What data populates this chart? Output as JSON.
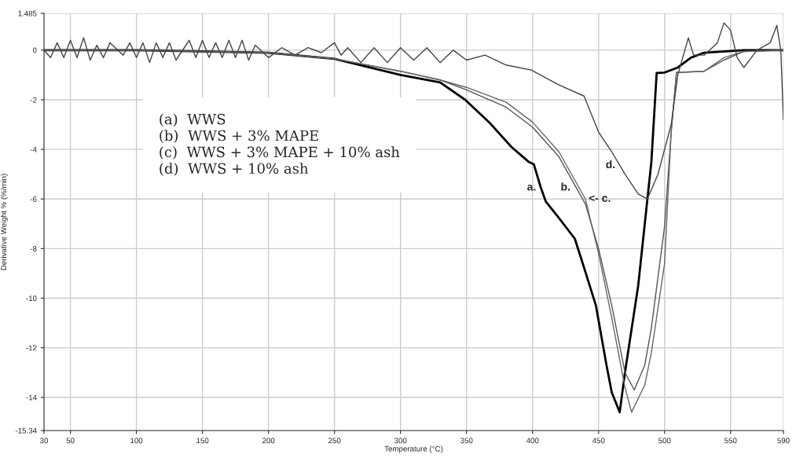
{
  "chart_data": {
    "type": "line",
    "xlabel": "Temperature (°C)",
    "ylabel": "Derivative Weight % (%/min)",
    "xlim": [
      30,
      590
    ],
    "ylim": [
      -15.34,
      1.485
    ],
    "xticks": [
      30,
      50,
      100,
      150,
      200,
      250,
      300,
      350,
      400,
      450,
      500,
      550,
      590
    ],
    "yticks": [
      -15.34,
      -14,
      -12,
      -10,
      -8,
      -6,
      -4,
      -2,
      0,
      1.485
    ],
    "grid": true,
    "legend": false,
    "marker": "none",
    "line_style": "solid",
    "series": [
      {
        "color": "#000000",
        "x": [
          30,
          100,
          200,
          250,
          300,
          330,
          349,
          367,
          384,
          397,
          401,
          406,
          410,
          419,
          432,
          438,
          448,
          456,
          460,
          466,
          470,
          480,
          490,
          494,
          500,
          510,
          520,
          530,
          560,
          590
        ],
        "values": [
          0,
          0,
          -0.1,
          -0.35,
          -1.0,
          -1.3,
          -2.0,
          -2.9,
          -3.9,
          -4.5,
          -4.6,
          -5.5,
          -6.1,
          -6.7,
          -7.6,
          -8.6,
          -10.3,
          -12.7,
          -13.8,
          -14.6,
          -13.0,
          -9.5,
          -4.5,
          -0.92,
          -0.9,
          -0.7,
          -0.3,
          -0.1,
          0,
          0
        ]
      },
      {
        "color": "#555555",
        "x": [
          30,
          100,
          200,
          250,
          300,
          330,
          350,
          380,
          400,
          420,
          440,
          450,
          460,
          470,
          477,
          485,
          490,
          500,
          505,
          509,
          530,
          545,
          560,
          590
        ],
        "values": [
          0,
          0,
          -0.1,
          -0.35,
          -0.85,
          -1.2,
          -1.6,
          -2.3,
          -3.1,
          -4.3,
          -6.2,
          -8.0,
          -10.3,
          -13.0,
          -13.7,
          -12.7,
          -11.2,
          -7.1,
          -3.3,
          -0.9,
          -0.85,
          -0.4,
          -0.05,
          0
        ]
      },
      {
        "color": "#666666",
        "x": [
          30,
          100,
          200,
          250,
          300,
          330,
          350,
          380,
          400,
          420,
          440,
          450,
          460,
          470,
          475,
          485,
          490,
          500,
          505,
          509,
          530,
          545,
          560,
          590
        ],
        "values": [
          0,
          0,
          -0.1,
          -0.35,
          -0.85,
          -1.2,
          -1.5,
          -2.1,
          -2.9,
          -4.1,
          -6.0,
          -8.2,
          -10.8,
          -13.6,
          -14.6,
          -13.5,
          -12.2,
          -8.6,
          -3.3,
          -0.9,
          -0.85,
          -0.3,
          -0.05,
          0
        ]
      },
      {
        "color": "#444444",
        "x": [
          30,
          35,
          40,
          45,
          50,
          55,
          60,
          65,
          70,
          75,
          80,
          90,
          95,
          100,
          105,
          110,
          115,
          120,
          125,
          130,
          140,
          145,
          150,
          155,
          160,
          165,
          170,
          175,
          180,
          185,
          190,
          200,
          210,
          220,
          230,
          240,
          250,
          255,
          260,
          270,
          280,
          290,
          300,
          310,
          320,
          330,
          340,
          350,
          364,
          380,
          399,
          420,
          439,
          450,
          460,
          470,
          480,
          487,
          495,
          505,
          510,
          518,
          522,
          530,
          540,
          545,
          550,
          555,
          560,
          570,
          580,
          585,
          588,
          590
        ],
        "values": [
          0,
          -0.3,
          0.3,
          -0.3,
          0.4,
          -0.3,
          0.5,
          -0.4,
          0.2,
          -0.3,
          0.3,
          -0.2,
          0.3,
          -0.3,
          0.3,
          -0.5,
          0.3,
          -0.3,
          0.3,
          -0.4,
          0.4,
          -0.3,
          0.4,
          -0.3,
          0.3,
          -0.3,
          0.4,
          -0.3,
          0.4,
          -0.4,
          0.2,
          -0.3,
          0.1,
          -0.2,
          0.1,
          -0.1,
          0.3,
          -0.2,
          0.1,
          -0.5,
          0.1,
          -0.5,
          0.1,
          -0.4,
          0.1,
          -0.5,
          0.0,
          -0.4,
          -0.2,
          -0.6,
          -0.8,
          -1.4,
          -1.85,
          -3.3,
          -4.1,
          -5.0,
          -5.8,
          -6.0,
          -5.0,
          -3.0,
          -1.0,
          0.5,
          -0.2,
          -0.2,
          0.3,
          1.1,
          0.8,
          -0.3,
          -0.7,
          0.0,
          0.3,
          1.0,
          0.0,
          -2.8
        ]
      }
    ],
    "annotations": [
      "(a)  WWS",
      "(b)  WWS + 3% MAPE",
      "(c)  WWS + 3% MAPE + 10% ash",
      "(d)  WWS + 10% ash",
      {
        "text": "a.",
        "x": 406,
        "y": -5.5
      },
      {
        "text": "b.",
        "x": 432,
        "y": -5.5
      },
      {
        "text": "<- c.",
        "x": 440,
        "y": -6.0
      },
      {
        "text": "d.",
        "x": 466,
        "y": -4.6
      }
    ]
  }
}
